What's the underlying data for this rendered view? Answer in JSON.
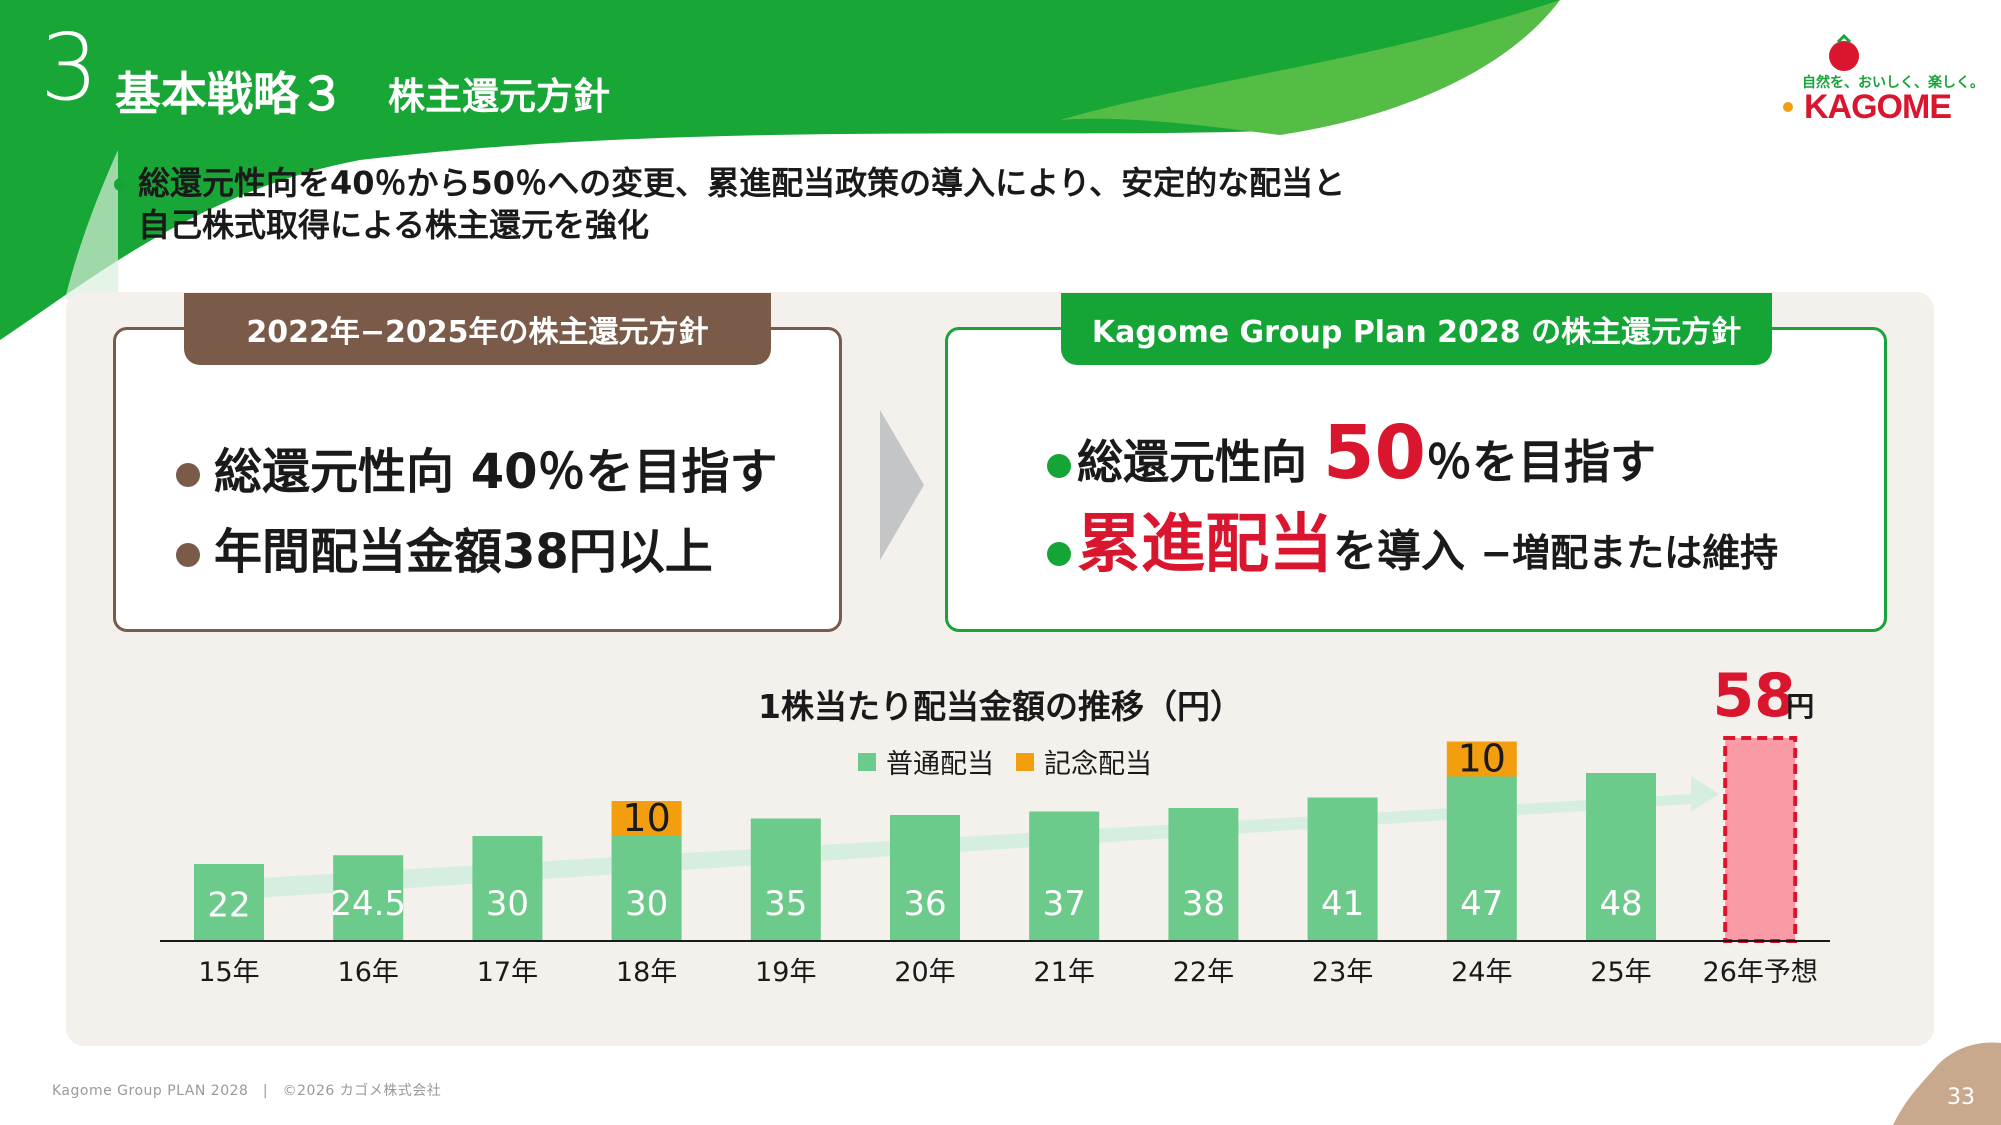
{
  "header": {
    "section_number": "3",
    "title": "基本戦略３",
    "subtitle": "株主還元方針",
    "logo_tagline": "自然を、おいしく、楽しく。",
    "logo_text": "KAGOME"
  },
  "lead": {
    "line1": "総還元性向を40％から50％への変更、累進配当政策の導入により、安定的な配当と",
    "line2": "自己株式取得による株主還元を強化"
  },
  "left_box": {
    "tab": "2022年−2025年の株主還元方針",
    "bullets": [
      "総還元性向 40％を目指す",
      "年間配当金額38円以上"
    ]
  },
  "right_box": {
    "tab": "Kagome Group Plan 2028 の株主還元方針",
    "b1_pre": "総還元性向 ",
    "b1_num": "50",
    "b1_post": "％を目指す",
    "b2_red": "累進配当",
    "b2_mid": "を導入 ",
    "b2_tail": "−増配または維持"
  },
  "chart_data": {
    "type": "bar",
    "title": "1株当たり配当金額の推移（円）",
    "categories": [
      "15年",
      "16年",
      "17年",
      "18年",
      "19年",
      "20年",
      "21年",
      "22年",
      "23年",
      "24年",
      "25年",
      "26年予想"
    ],
    "series": [
      {
        "name": "普通配当",
        "values": [
          22,
          24.5,
          30,
          30,
          35,
          36,
          37,
          38,
          41,
          47,
          48,
          null
        ]
      },
      {
        "name": "記念配当",
        "values": [
          null,
          null,
          null,
          10,
          null,
          null,
          null,
          null,
          null,
          10,
          null,
          null
        ]
      }
    ],
    "forecast": {
      "category": "26年予想",
      "value": 58,
      "label_num": "58",
      "label_unit": "円"
    },
    "stacked": true,
    "grid": false,
    "legend_position": "top-center",
    "colors": {
      "regular": "#6ccb8a",
      "commemorative": "#f29e0e",
      "forecast": "#f99aa5",
      "forecast_border": "#d9162e",
      "trend_arrow": "#d6eee0"
    }
  },
  "footer": {
    "left": "Kagome Group PLAN 2028　|　©2026 カゴメ株式会社",
    "page": "33"
  }
}
